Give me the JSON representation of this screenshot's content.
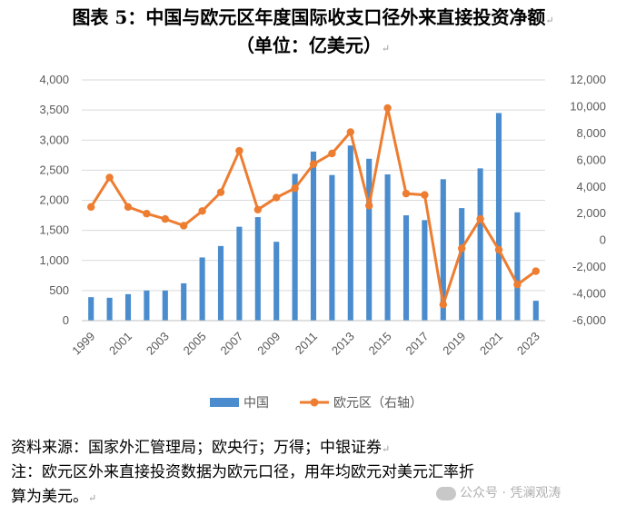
{
  "header": {
    "title": "图表 5：中国与欧元区年度国际收支口径外来直接投资净额",
    "subtitle": "（单位：亿美元）"
  },
  "colors": {
    "china": "#4a8ccd",
    "euro": "#ed7d31",
    "axis": "#595959",
    "grid": "#d9d9d9"
  },
  "chart_data": {
    "type": "bar",
    "categories": [
      "1999",
      "2000",
      "2001",
      "2002",
      "2003",
      "2004",
      "2005",
      "2006",
      "2007",
      "2008",
      "2009",
      "2010",
      "2011",
      "2012",
      "2013",
      "2014",
      "2015",
      "2016",
      "2017",
      "2018",
      "2019",
      "2020",
      "2021",
      "2022",
      "2023"
    ],
    "x_tick_labels": [
      "1999",
      "2001",
      "2003",
      "2005",
      "2007",
      "2009",
      "2011",
      "2013",
      "2015",
      "2017",
      "2019",
      "2021",
      "2023"
    ],
    "y_left": {
      "min": 0,
      "max": 4000,
      "ticks": [
        0,
        500,
        1000,
        1500,
        2000,
        2500,
        3000,
        3500,
        4000
      ],
      "tick_labels": [
        "0",
        "500",
        "1,000",
        "1,500",
        "2,000",
        "2,500",
        "3,000",
        "3,500",
        "4,000"
      ]
    },
    "y_right": {
      "min": -6000,
      "max": 12000,
      "ticks": [
        -6000,
        -4000,
        -2000,
        0,
        2000,
        4000,
        6000,
        8000,
        10000,
        12000
      ],
      "tick_labels": [
        "-6,000",
        "-4,000",
        "-2,000",
        "0",
        "2,000",
        "4,000",
        "6,000",
        "8,000",
        "10,000",
        "12,000"
      ]
    },
    "series": [
      {
        "name": "中国",
        "type": "bar",
        "axis": "left",
        "values": [
          390,
          380,
          440,
          500,
          500,
          620,
          1050,
          1240,
          1560,
          1720,
          1310,
          2440,
          2810,
          2420,
          2910,
          2690,
          2430,
          1750,
          1670,
          2350,
          1870,
          2530,
          3450,
          1800,
          330
        ]
      },
      {
        "name": "欧元区（右轴）",
        "type": "line",
        "axis": "right",
        "values": [
          2500,
          4700,
          2500,
          2000,
          1600,
          1100,
          2200,
          3600,
          6700,
          2300,
          3200,
          3900,
          5700,
          6500,
          8100,
          2600,
          9900,
          3500,
          3400,
          -4800,
          -600,
          1600,
          -700,
          -3300,
          -2300
        ]
      }
    ],
    "grid": true,
    "legend": "bottom"
  },
  "footer": {
    "source": "资料来源：国家外汇管理局；欧央行；万得；中银证券",
    "note_line1": "注：欧元区外来直接投资数据为欧元口径，用年均欧元对美元汇率折",
    "note_line2": "算为美元。",
    "watermark": "公众号 · 凭澜观涛",
    "para_mark": "↵"
  }
}
